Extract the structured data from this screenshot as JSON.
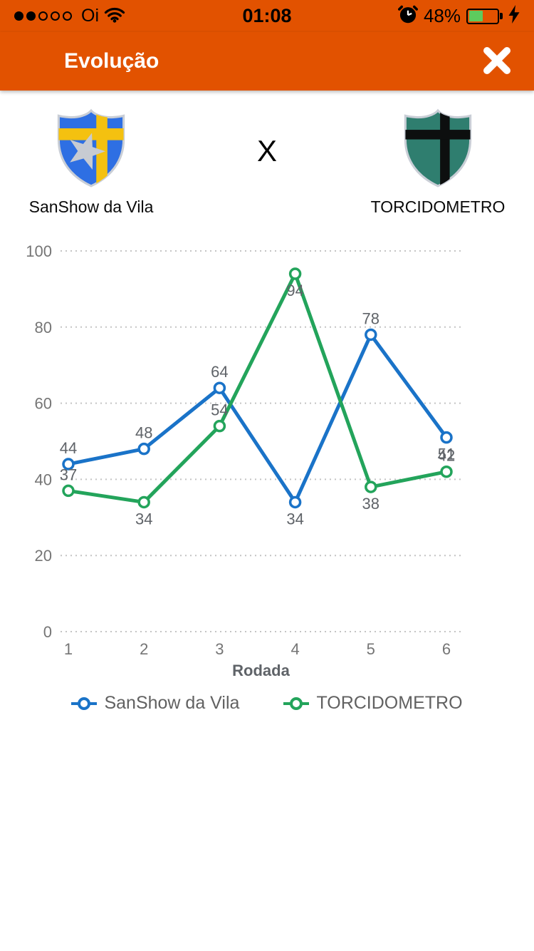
{
  "status_bar": {
    "carrier": "Oi",
    "time": "01:08",
    "battery_percent": "48%",
    "signal_filled_dots": 2,
    "signal_total_dots": 5,
    "battery_fill_ratio": 0.5,
    "charging": true
  },
  "header": {
    "title": "Evolução"
  },
  "match": {
    "separator": "X",
    "home_team": "SanShow da Vila",
    "away_team": "TORCIDOMETRO"
  },
  "chart_data": {
    "type": "line",
    "x": [
      1,
      2,
      3,
      4,
      5,
      6
    ],
    "xlabel": "Rodada",
    "ylim": [
      0,
      100
    ],
    "yticks": [
      0,
      20,
      40,
      60,
      80,
      100
    ],
    "grid": "dotted-horizontal",
    "legend_position": "bottom",
    "series": [
      {
        "name": "SanShow da Vila",
        "color": "#1A73C8",
        "values": [
          44,
          48,
          64,
          34,
          78,
          51
        ],
        "label_positions": [
          "above",
          "above",
          "above",
          "below",
          "above",
          "below"
        ]
      },
      {
        "name": "TORCIDOMETRO",
        "color": "#23A45B",
        "values": [
          37,
          34,
          54,
          94,
          38,
          42
        ],
        "label_positions": [
          "above",
          "below",
          "above",
          "below",
          "below",
          "above"
        ]
      }
    ],
    "tick_color": "#757575",
    "gridline_color": "#C4C4C4",
    "data_label_color": "#5F6368"
  },
  "colors": {
    "accent_orange": "#E25200",
    "home_crest_blue": "#2E6FE3",
    "home_crest_yellow": "#F4C110",
    "home_crest_star": "#C7CBD2",
    "away_crest_teal": "#2F7E6F",
    "away_crest_cross": "#0D0F0F"
  }
}
